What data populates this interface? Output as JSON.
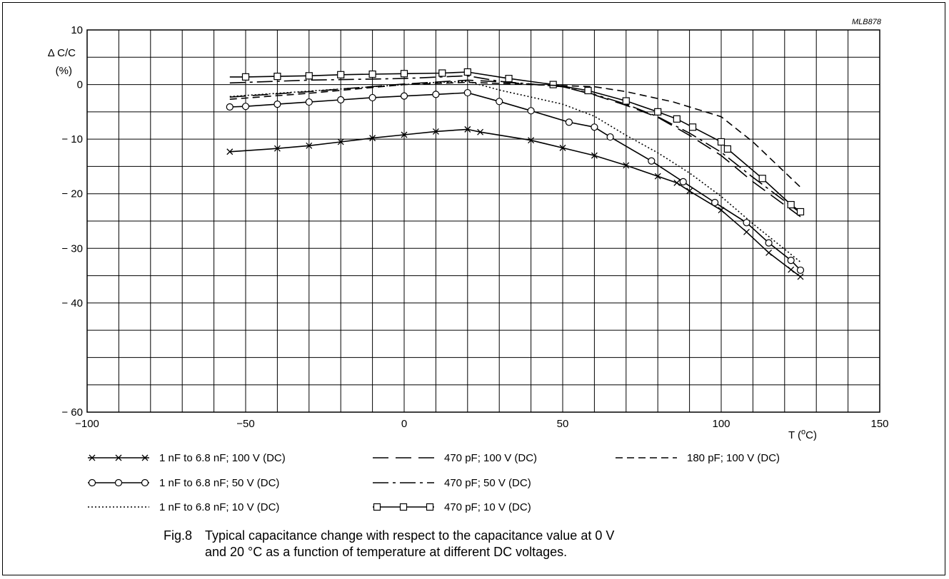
{
  "figure_code": "MLB878",
  "caption": {
    "label": "Fig.8",
    "line1": "Typical capacitance change with respect to the capacitance value at 0 V",
    "line2": "and 20 °C as a function of temperature at different DC voltages."
  },
  "chart_data": {
    "type": "line",
    "title": "",
    "xlabel": "T (°C)",
    "ylabel": "Δ C/C (%)",
    "xlim": [
      -100,
      150
    ],
    "ylim": [
      -60,
      10
    ],
    "x_ticks": [
      -100,
      -50,
      0,
      50,
      100,
      150
    ],
    "x_tick_labels": [
      "−100",
      "−50",
      "0",
      "50",
      "100",
      "150"
    ],
    "y_ticks": [
      10,
      0,
      -10,
      -20,
      -30,
      -40,
      -60
    ],
    "y_tick_labels": [
      "10",
      "0",
      "− 10",
      "− 20",
      "− 30",
      "− 40",
      "− 60"
    ],
    "grid": true,
    "legend_position": "bottom",
    "series": [
      {
        "name": "1 nF to 6.8 nF; 100 V (DC)",
        "style": "solid",
        "marker": "x",
        "points": [
          [
            -55,
            -12.3
          ],
          [
            -40,
            -11.7
          ],
          [
            -30,
            -11.2
          ],
          [
            -20,
            -10.5
          ],
          [
            -10,
            -9.8
          ],
          [
            0,
            -9.2
          ],
          [
            10,
            -8.6
          ],
          [
            20,
            -8.2
          ],
          [
            24,
            -8.7
          ],
          [
            40,
            -10.2
          ],
          [
            50,
            -11.6
          ],
          [
            60,
            -13.0
          ],
          [
            70,
            -14.8
          ],
          [
            80,
            -16.8
          ],
          [
            86,
            -18.0
          ],
          [
            90,
            -19.5
          ],
          [
            100,
            -23.0
          ],
          [
            108,
            -27.0
          ],
          [
            115,
            -30.8
          ],
          [
            122,
            -33.9
          ],
          [
            125,
            -35.2
          ]
        ]
      },
      {
        "name": "1 nF to 6.8 nF; 50 V (DC)",
        "style": "solid",
        "marker": "circle",
        "points": [
          [
            -55,
            -4.1
          ],
          [
            -50,
            -4.0
          ],
          [
            -40,
            -3.6
          ],
          [
            -30,
            -3.2
          ],
          [
            -20,
            -2.8
          ],
          [
            -10,
            -2.4
          ],
          [
            0,
            -2.1
          ],
          [
            10,
            -1.8
          ],
          [
            20,
            -1.5
          ],
          [
            30,
            -3.1
          ],
          [
            40,
            -4.8
          ],
          [
            52,
            -6.9
          ],
          [
            60,
            -7.8
          ],
          [
            65,
            -9.6
          ],
          [
            78,
            -14.0
          ],
          [
            88,
            -17.8
          ],
          [
            98,
            -21.6
          ],
          [
            108,
            -25.3
          ],
          [
            115,
            -29.0
          ],
          [
            122,
            -32.2
          ],
          [
            125,
            -34.0
          ]
        ]
      },
      {
        "name": "1 nF to 6.8 nF; 10 V (DC)",
        "style": "dotted",
        "marker": "none",
        "points": [
          [
            -55,
            -2.2
          ],
          [
            -30,
            -1.2
          ],
          [
            0,
            0.0
          ],
          [
            10,
            0.4
          ],
          [
            20,
            0.6
          ],
          [
            30,
            -1.0
          ],
          [
            50,
            -3.6
          ],
          [
            60,
            -5.8
          ],
          [
            70,
            -9.3
          ],
          [
            80,
            -12.5
          ],
          [
            90,
            -16.2
          ],
          [
            100,
            -20.5
          ],
          [
            110,
            -25.5
          ],
          [
            125,
            -32.5
          ]
        ]
      },
      {
        "name": "470 pF; 100 V (DC)",
        "style": "longdash",
        "marker": "none",
        "points": [
          [
            -55,
            -2.3
          ],
          [
            -30,
            -1.3
          ],
          [
            0,
            0.1
          ],
          [
            20,
            0.8
          ],
          [
            30,
            0.5
          ],
          [
            50,
            -0.4
          ],
          [
            60,
            -1.9
          ],
          [
            70,
            -3.8
          ],
          [
            80,
            -6.0
          ],
          [
            90,
            -9.3
          ],
          [
            100,
            -13.0
          ],
          [
            110,
            -17.8
          ],
          [
            125,
            -24.2
          ]
        ]
      },
      {
        "name": "470 pF; 50 V (DC)",
        "style": "dashdot",
        "marker": "none",
        "points": [
          [
            -55,
            0.3
          ],
          [
            -30,
            0.8
          ],
          [
            0,
            1.1
          ],
          [
            20,
            1.6
          ],
          [
            30,
            0.6
          ],
          [
            50,
            -0.4
          ],
          [
            60,
            -1.8
          ],
          [
            70,
            -3.6
          ],
          [
            80,
            -5.9
          ],
          [
            90,
            -8.9
          ],
          [
            100,
            -12.4
          ],
          [
            110,
            -17.0
          ],
          [
            125,
            -23.5
          ]
        ]
      },
      {
        "name": "470 pF; 10 V (DC)",
        "style": "solid",
        "marker": "square",
        "points": [
          [
            -55,
            1.4
          ],
          [
            -50,
            1.4
          ],
          [
            -40,
            1.5
          ],
          [
            -30,
            1.6
          ],
          [
            -20,
            1.8
          ],
          [
            -10,
            1.9
          ],
          [
            0,
            2.0
          ],
          [
            12,
            2.1
          ],
          [
            20,
            2.3
          ],
          [
            33,
            1.1
          ],
          [
            47,
            0.0
          ],
          [
            58,
            -1.1
          ],
          [
            70,
            -3.0
          ],
          [
            80,
            -5.0
          ],
          [
            86,
            -6.3
          ],
          [
            91,
            -7.8
          ],
          [
            100,
            -10.5
          ],
          [
            102,
            -11.8
          ],
          [
            113,
            -17.2
          ],
          [
            122,
            -22.0
          ],
          [
            125,
            -23.3
          ]
        ]
      },
      {
        "name": "180 pF; 100 V (DC)",
        "style": "dashed",
        "marker": "none",
        "points": [
          [
            -55,
            -2.7
          ],
          [
            -30,
            -1.6
          ],
          [
            0,
            0.0
          ],
          [
            20,
            0.4
          ],
          [
            30,
            0.2
          ],
          [
            50,
            -0.2
          ],
          [
            60,
            -0.4
          ],
          [
            70,
            -1.3
          ],
          [
            85,
            -3.2
          ],
          [
            100,
            -5.9
          ],
          [
            110,
            -10.5
          ],
          [
            125,
            -18.8
          ]
        ]
      }
    ]
  }
}
